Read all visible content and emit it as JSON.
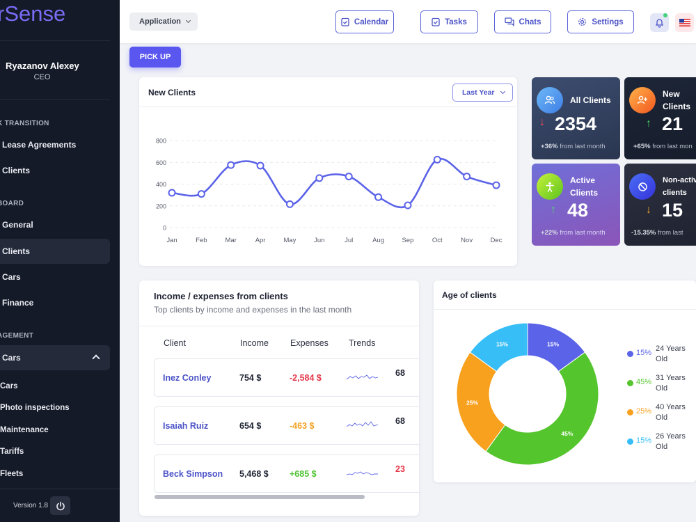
{
  "sidebar": {
    "logo": "rSense",
    "user": {
      "name": "Ryazanov Alexey",
      "role": "CEO"
    },
    "sections": [
      {
        "title": "K TRANSITION",
        "items": [
          "Lease Agreements",
          "Clients"
        ]
      },
      {
        "title": "BOARD",
        "items": [
          "General",
          "Clients",
          "Cars",
          "Finance"
        ]
      },
      {
        "title": "AGEMENT",
        "items": [
          "Cars"
        ]
      }
    ],
    "sub_items": [
      "Cars",
      "Photo inspections",
      "Maintenance",
      "Tariffs",
      "Fleets"
    ],
    "version": "Version 1.8",
    "colors": {
      "logo": "#7a6cf5",
      "bg": "#151a28"
    }
  },
  "header": {
    "app_dropdown": "Application",
    "buttons": [
      "Calendar",
      "Tasks",
      "Chats",
      "Settings"
    ]
  },
  "pickup_label": "PICK UP",
  "new_clients": {
    "title": "New Clients",
    "period": "Last Year"
  },
  "stats": [
    {
      "label_lines": [
        "All Clients"
      ],
      "value": "2354",
      "change": "+36%",
      "suffix": "from last month",
      "trend": "down"
    },
    {
      "label_lines": [
        "New",
        "Clients"
      ],
      "value": "21",
      "change": "+65%",
      "suffix": "from last mon",
      "trend": "up"
    },
    {
      "label_lines": [
        "Active",
        "Clients"
      ],
      "value": "48",
      "change": "+22%",
      "suffix": "from last month",
      "trend": "up"
    },
    {
      "label_lines": [
        "Non-activ",
        "clients"
      ],
      "value": "15",
      "change": "-15.35%",
      "suffix": "from last",
      "trend": "down"
    }
  ],
  "income": {
    "title": "Income / expenses from clients",
    "subtitle": "Top clients by income and expenses in the last month",
    "headers": [
      "Client",
      "Income",
      "Expenses",
      "Trends"
    ],
    "rows": [
      {
        "name": "Inez Conley",
        "income": "754 $",
        "expenses": "-2,584 $",
        "exp_color": "#e5384a",
        "cut": "68",
        "cut_color": "#1f2433"
      },
      {
        "name": "Isaiah Ruiz",
        "income": "654 $",
        "expenses": "-463 $",
        "exp_color": "#f3a224",
        "cut": "68",
        "cut_color": "#1f2433"
      },
      {
        "name": "Beck Simpson",
        "income": "5,468 $",
        "expenses": "+685 $",
        "exp_color": "#4fc233",
        "cut": "23",
        "cut_color": "#e5384a"
      }
    ]
  },
  "age": {
    "title": "Age of clients"
  },
  "chart_data": [
    {
      "type": "line",
      "title": "New Clients",
      "categories": [
        "Jan",
        "Feb",
        "Mar",
        "Apr",
        "May",
        "Jun",
        "Jul",
        "Aug",
        "Sep",
        "Oct",
        "Nov",
        "Dec"
      ],
      "values": [
        320,
        310,
        575,
        570,
        215,
        455,
        470,
        280,
        205,
        625,
        470,
        390
      ],
      "yticks": [
        0,
        200,
        400,
        600,
        800
      ],
      "ylim": [
        0,
        800
      ],
      "grid": true,
      "color": "#5b63e8"
    },
    {
      "type": "pie",
      "title": "Age of clients",
      "slices": [
        {
          "label": "24 Years Old",
          "value": 15,
          "display": "15%",
          "color": "#5b63e8"
        },
        {
          "label": "31 Years Old",
          "value": 45,
          "display": "45%",
          "color": "#54c52d"
        },
        {
          "label": "40 Years Old",
          "value": 25,
          "display": "25%",
          "color": "#f8a11e"
        },
        {
          "label": "26 Years Old",
          "value": 15,
          "display": "15%",
          "color": "#37bef6"
        }
      ]
    }
  ]
}
